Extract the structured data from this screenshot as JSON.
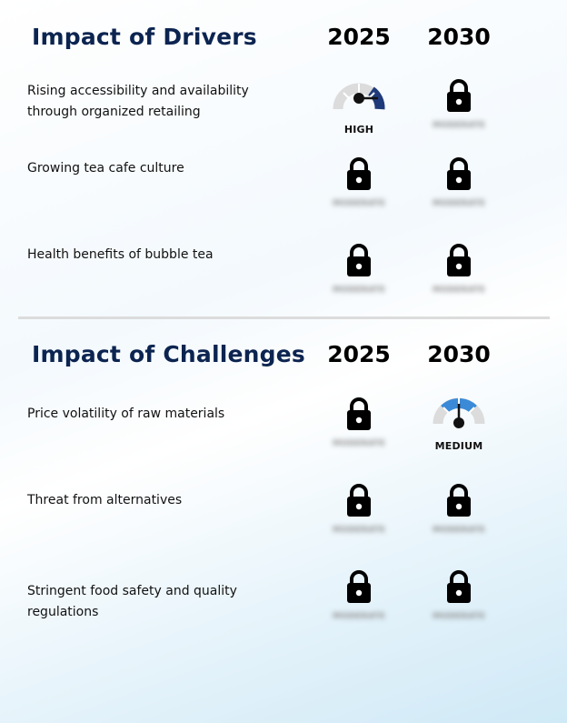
{
  "drivers": {
    "title": "Impact of Drivers",
    "year1": "2025",
    "year2": "2030",
    "rows": [
      {
        "label": "Rising accessibility and availability through organized retailing",
        "c2025": {
          "type": "gauge",
          "level": "HIGH",
          "color": "#1f3a7a"
        },
        "c2030": {
          "type": "lock",
          "blurred": "MODERATE"
        }
      },
      {
        "label": "Growing tea cafe culture",
        "c2025": {
          "type": "lock",
          "blurred": "MODERATE"
        },
        "c2030": {
          "type": "lock",
          "blurred": "MODERATE"
        }
      },
      {
        "label": "Health benefits of bubble tea",
        "c2025": {
          "type": "lock",
          "blurred": "MODERATE"
        },
        "c2030": {
          "type": "lock",
          "blurred": "MODERATE"
        }
      }
    ]
  },
  "challenges": {
    "title": "Impact of Challenges",
    "year1": "2025",
    "year2": "2030",
    "rows": [
      {
        "label": "Price volatility of raw materials",
        "c2025": {
          "type": "lock",
          "blurred": "MODERATE"
        },
        "c2030": {
          "type": "gauge",
          "level": "MEDIUM",
          "color": "#3a8ad8"
        }
      },
      {
        "label": "Threat from alternatives",
        "c2025": {
          "type": "lock",
          "blurred": "MODERATE"
        },
        "c2030": {
          "type": "lock",
          "blurred": "MODERATE"
        }
      },
      {
        "label": "Stringent food safety and quality regulations",
        "c2025": {
          "type": "lock",
          "blurred": "MODERATE"
        },
        "c2030": {
          "type": "lock",
          "blurred": "MODERATE"
        }
      }
    ]
  }
}
